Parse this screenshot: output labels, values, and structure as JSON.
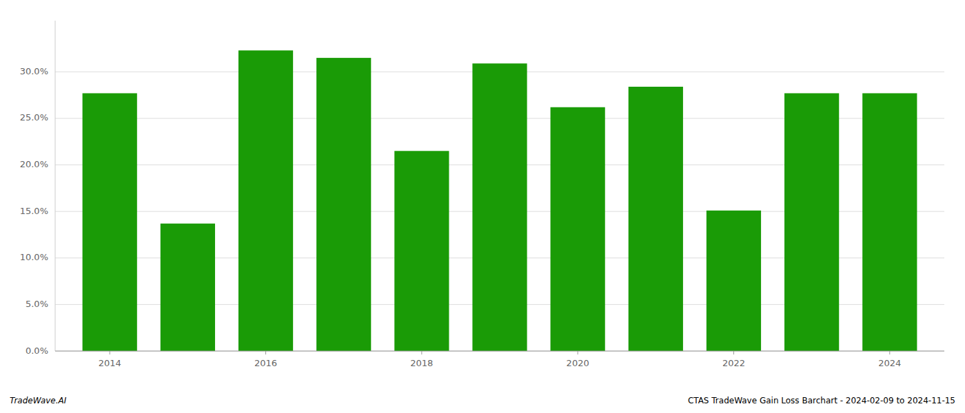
{
  "chart_data": {
    "type": "bar",
    "x": [
      2014,
      2015,
      2016,
      2017,
      2018,
      2019,
      2020,
      2021,
      2022,
      2023,
      2024
    ],
    "values": [
      0.277,
      0.137,
      0.323,
      0.315,
      0.215,
      0.309,
      0.262,
      0.284,
      0.151,
      0.277,
      0.277
    ],
    "color": "#1a9b06",
    "xlim": [
      2013.3,
      2024.7
    ],
    "xticks": [
      2014,
      2016,
      2018,
      2020,
      2022,
      2024
    ],
    "ylim": [
      0,
      0.355
    ],
    "yticks": [
      {
        "value": 0.0,
        "label": "0.0%"
      },
      {
        "value": 0.05,
        "label": "5.0%"
      },
      {
        "value": 0.1,
        "label": "10.0%"
      },
      {
        "value": 0.15,
        "label": "15.0%"
      },
      {
        "value": 0.2,
        "label": "20.0%"
      },
      {
        "value": 0.25,
        "label": "25.0%"
      },
      {
        "value": 0.3,
        "label": "30.0%"
      }
    ],
    "grid": true,
    "annotations": [
      "TradeWave.AI",
      "CTAS TradeWave Gain Loss Barchart - 2024-02-09 to 2024-11-15"
    ]
  }
}
